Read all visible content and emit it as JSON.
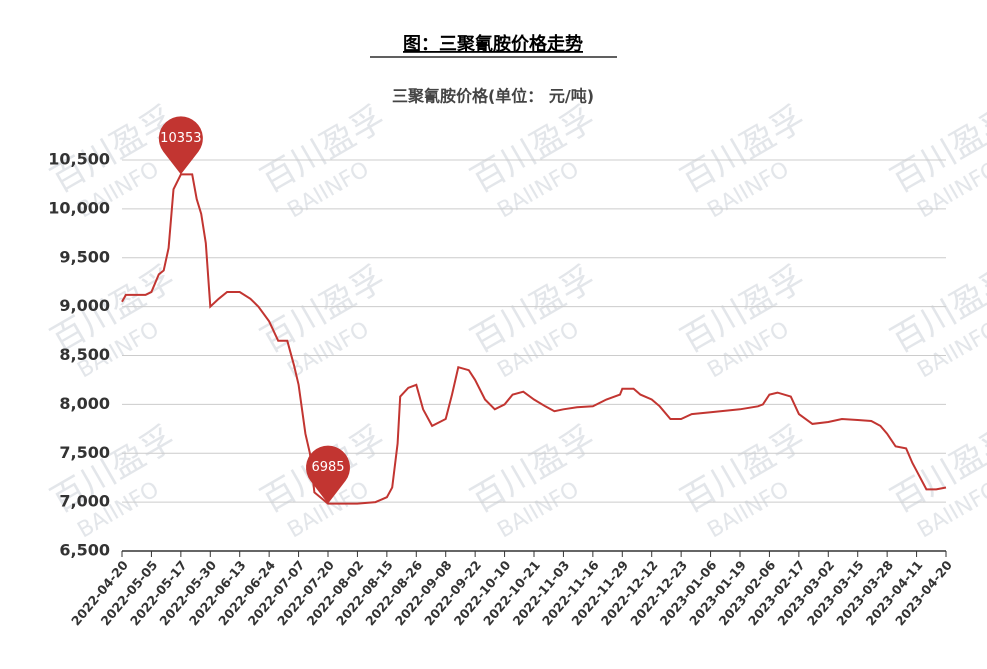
{
  "chart_data": {
    "type": "line",
    "title": "图：三聚氰胺价格走势",
    "subtitle": "三聚氰胺价格(单位： 元/吨)",
    "watermark": [
      "百川盈孚",
      "BAIINFO"
    ],
    "color": "#c23531",
    "grid": true,
    "ylim": [
      6500,
      10500
    ],
    "yticks": [
      {
        "value": 6500,
        "label": "6,500"
      },
      {
        "value": 7000,
        "label": "7,000"
      },
      {
        "value": 7500,
        "label": "7,500"
      },
      {
        "value": 8000,
        "label": "8,000"
      },
      {
        "value": 8500,
        "label": "8,500"
      },
      {
        "value": 9000,
        "label": "9,000"
      },
      {
        "value": 9500,
        "label": "9,500"
      },
      {
        "value": 10000,
        "label": "10,000"
      },
      {
        "value": 10500,
        "label": "10,500"
      }
    ],
    "xlim": [
      "2022-04-20",
      "2023-04-20"
    ],
    "xticks": [
      "2022-04-20",
      "2022-05-05",
      "2022-05-17",
      "2022-05-30",
      "2022-06-13",
      "2022-06-24",
      "2022-07-07",
      "2022-07-20",
      "2022-08-02",
      "2022-08-15",
      "2022-08-26",
      "2022-09-08",
      "2022-09-22",
      "2022-10-10",
      "2022-10-21",
      "2022-11-03",
      "2022-11-16",
      "2022-11-29",
      "2022-12-12",
      "2022-12-23",
      "2023-01-06",
      "2023-01-19",
      "2023-02-06",
      "2023-02-17",
      "2023-03-02",
      "2023-03-15",
      "2023-03-28",
      "2023-04-11",
      "2023-04-20"
    ],
    "x": [
      "2022-04-20",
      "2022-04-22",
      "2022-05-02",
      "2022-05-05",
      "2022-05-08",
      "2022-05-10",
      "2022-05-12",
      "2022-05-14",
      "2022-05-17",
      "2022-05-22",
      "2022-05-24",
      "2022-05-26",
      "2022-05-28",
      "2022-05-30",
      "2022-06-03",
      "2022-06-07",
      "2022-06-13",
      "2022-06-17",
      "2022-06-20",
      "2022-06-24",
      "2022-06-28",
      "2022-07-02",
      "2022-07-05",
      "2022-07-07",
      "2022-07-10",
      "2022-07-12",
      "2022-07-14",
      "2022-07-20",
      "2022-08-02",
      "2022-08-10",
      "2022-08-15",
      "2022-08-17",
      "2022-08-19",
      "2022-08-20",
      "2022-08-23",
      "2022-08-26",
      "2022-08-29",
      "2022-09-02",
      "2022-09-08",
      "2022-09-11",
      "2022-09-14",
      "2022-09-19",
      "2022-09-22",
      "2022-09-28",
      "2022-10-04",
      "2022-10-10",
      "2022-10-13",
      "2022-10-17",
      "2022-10-21",
      "2022-10-26",
      "2022-10-30",
      "2022-11-03",
      "2022-11-09",
      "2022-11-16",
      "2022-11-22",
      "2022-11-28",
      "2022-11-29",
      "2022-12-04",
      "2022-12-07",
      "2022-12-12",
      "2022-12-15",
      "2022-12-19",
      "2022-12-23",
      "2022-12-28",
      "2023-01-06",
      "2023-01-19",
      "2023-01-30",
      "2023-02-02",
      "2023-02-06",
      "2023-02-09",
      "2023-02-14",
      "2023-02-17",
      "2023-02-23",
      "2023-03-02",
      "2023-03-08",
      "2023-03-15",
      "2023-03-21",
      "2023-03-25",
      "2023-03-28",
      "2023-04-01",
      "2023-04-06",
      "2023-04-09",
      "2023-04-11",
      "2023-04-14",
      "2023-04-17",
      "2023-04-20"
    ],
    "values": [
      9050,
      9120,
      9120,
      9150,
      9330,
      9370,
      9600,
      10200,
      10353,
      10353,
      10100,
      9950,
      9650,
      9000,
      9080,
      9150,
      9150,
      9080,
      9000,
      8850,
      8650,
      8650,
      8400,
      8200,
      7700,
      7500,
      7100,
      6985,
      6985,
      7000,
      7050,
      7150,
      7600,
      8080,
      8170,
      8200,
      7950,
      7780,
      7850,
      8100,
      8380,
      8350,
      8250,
      8050,
      7950,
      8000,
      8100,
      8130,
      8050,
      7980,
      7930,
      7950,
      7970,
      7980,
      8050,
      8100,
      8160,
      8160,
      8100,
      8050,
      7980,
      7850,
      7850,
      7900,
      7920,
      7950,
      7980,
      8000,
      8100,
      8120,
      8080,
      7900,
      7800,
      7820,
      7850,
      7840,
      7830,
      7780,
      7700,
      7570,
      7550,
      7400,
      7320,
      7130,
      7130,
      7150
    ]
  }
}
